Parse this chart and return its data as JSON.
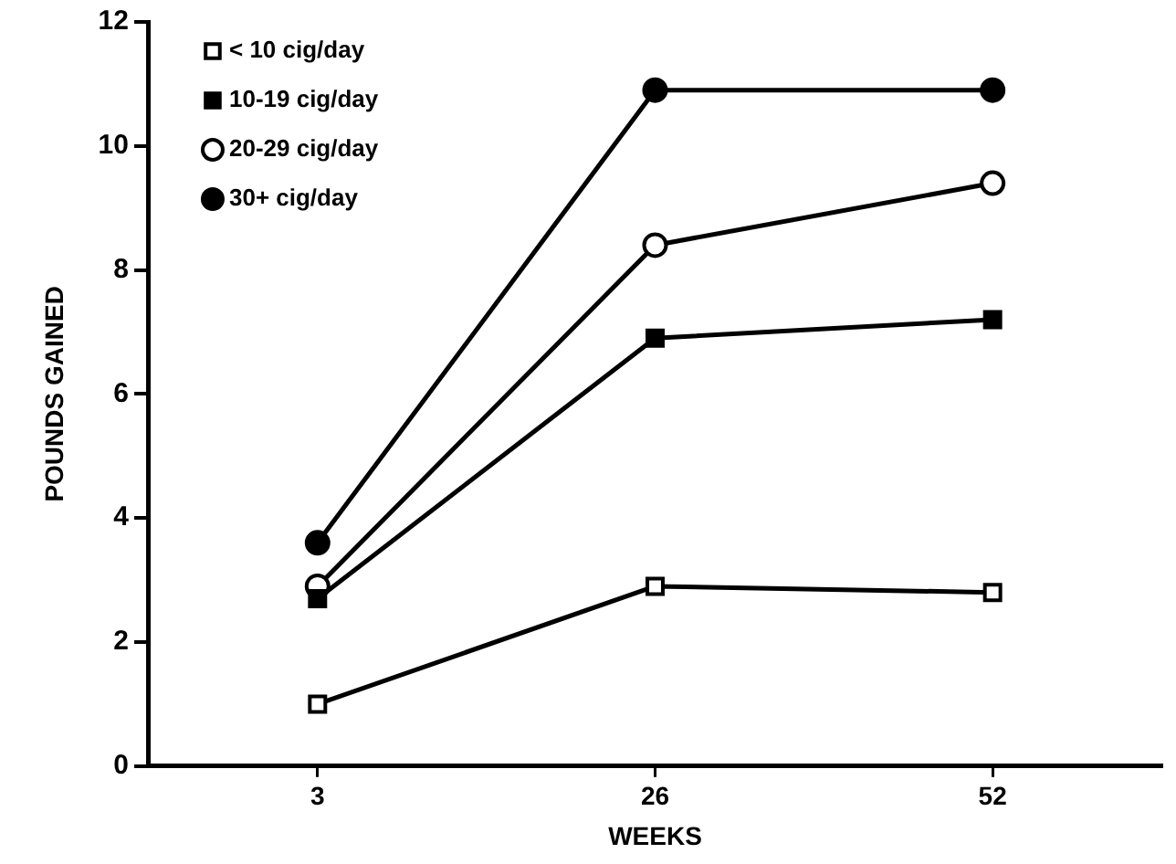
{
  "chart_data": {
    "type": "line",
    "xlabel": "WEEKS",
    "ylabel": "POUNDS GAINED",
    "categories": [
      "3",
      "26",
      "52"
    ],
    "series": [
      {
        "name": "< 10 cig/day",
        "color": "#000000",
        "marker": "square",
        "values": [
          1.0,
          2.9,
          2.8
        ]
      },
      {
        "name": "10-19 cig/day",
        "color": "#000000",
        "marker": "square",
        "values": [
          2.7,
          6.9,
          7.2
        ]
      },
      {
        "name": "20-29 cig/day",
        "color": "#000000",
        "marker": "circle",
        "values": [
          2.9,
          8.4,
          9.4
        ]
      },
      {
        "name": "30+ cig/day",
        "color": "#000000",
        "marker": "circle",
        "values": [
          3.6,
          10.9,
          10.9
        ]
      }
    ],
    "ylim": [
      0,
      12
    ],
    "yticks": [
      0,
      2,
      4,
      6,
      8,
      10,
      12
    ],
    "grid": false,
    "legend": "top left",
    "line_style": "solid"
  }
}
